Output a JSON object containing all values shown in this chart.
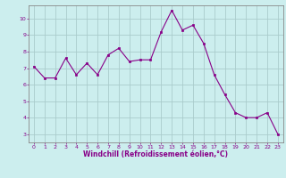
{
  "x": [
    0,
    1,
    2,
    3,
    4,
    5,
    6,
    7,
    8,
    9,
    10,
    11,
    12,
    13,
    14,
    15,
    16,
    17,
    18,
    19,
    20,
    21,
    22,
    23
  ],
  "y": [
    7.1,
    6.4,
    6.4,
    7.6,
    6.6,
    7.3,
    6.6,
    7.8,
    8.2,
    7.4,
    7.5,
    7.5,
    9.2,
    10.5,
    9.3,
    9.6,
    8.5,
    6.6,
    5.4,
    4.3,
    4.0,
    4.0,
    4.3,
    3.0
  ],
  "line_color": "#880088",
  "marker_color": "#880088",
  "bg_color": "#cceeee",
  "grid_color": "#aacccc",
  "xlabel": "Windchill (Refroidissement éolien,°C)",
  "xlabel_color": "#880088",
  "tick_color": "#880088",
  "spine_color": "#888888",
  "xlim": [
    -0.5,
    23.5
  ],
  "ylim": [
    2.5,
    10.8
  ],
  "yticks": [
    3,
    4,
    5,
    6,
    7,
    8,
    9,
    10
  ],
  "xticks": [
    0,
    1,
    2,
    3,
    4,
    5,
    6,
    7,
    8,
    9,
    10,
    11,
    12,
    13,
    14,
    15,
    16,
    17,
    18,
    19,
    20,
    21,
    22,
    23
  ]
}
